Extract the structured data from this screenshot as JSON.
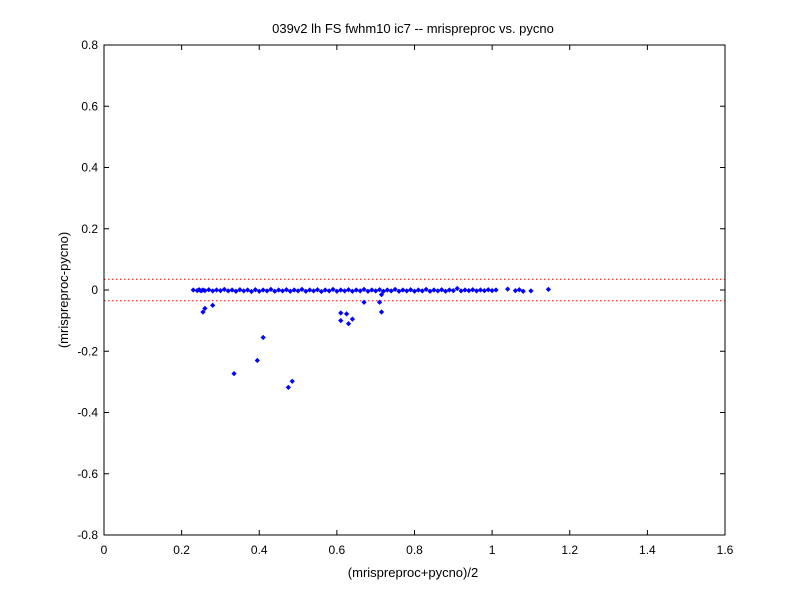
{
  "chart_data": {
    "type": "scatter",
    "title": "039v2 lh FS fwhm10 ic7 -- mrispreproc vs. pycno",
    "xlabel": "(mrispreproc+pycno)/2",
    "ylabel": "(mrispreproc-pycno)",
    "xlim": [
      0,
      1.6
    ],
    "ylim": [
      -0.8,
      0.8
    ],
    "x_ticks": [
      0,
      0.2,
      0.4,
      0.6,
      0.8,
      1,
      1.2,
      1.4,
      1.6
    ],
    "x_tick_labels": [
      "0",
      "0.2",
      "0.4",
      "0.6",
      "0.8",
      "1",
      "1.2",
      "1.4",
      "1.6"
    ],
    "y_ticks": [
      -0.8,
      -0.6,
      -0.4,
      -0.2,
      0,
      0.2,
      0.4,
      0.6,
      0.8
    ],
    "y_tick_labels": [
      "-0.8",
      "-0.6",
      "-0.4",
      "-0.2",
      "0",
      "0.2",
      "0.4",
      "0.6",
      "0.8"
    ],
    "grid": false,
    "point_color": "#0000ff",
    "reference_line_color": "#ff0000",
    "reference_lines_y": [
      0.035,
      -0.035
    ],
    "points": [
      [
        0.23,
        0.0
      ],
      [
        0.24,
        -0.002
      ],
      [
        0.245,
        0.001
      ],
      [
        0.25,
        -0.003
      ],
      [
        0.255,
        0.0
      ],
      [
        0.26,
        -0.002
      ],
      [
        0.27,
        0.001
      ],
      [
        0.28,
        -0.003
      ],
      [
        0.29,
        0.0
      ],
      [
        0.3,
        -0.002
      ],
      [
        0.31,
        0.002
      ],
      [
        0.32,
        -0.003
      ],
      [
        0.33,
        0.0
      ],
      [
        0.34,
        -0.004
      ],
      [
        0.35,
        0.001
      ],
      [
        0.36,
        -0.003
      ],
      [
        0.37,
        0.0
      ],
      [
        0.38,
        -0.005
      ],
      [
        0.39,
        0.001
      ],
      [
        0.4,
        -0.004
      ],
      [
        0.41,
        0.0
      ],
      [
        0.42,
        -0.003
      ],
      [
        0.43,
        0.002
      ],
      [
        0.44,
        -0.004
      ],
      [
        0.45,
        0.0
      ],
      [
        0.46,
        -0.003
      ],
      [
        0.47,
        0.001
      ],
      [
        0.48,
        -0.004
      ],
      [
        0.49,
        0.0
      ],
      [
        0.5,
        -0.003
      ],
      [
        0.51,
        0.002
      ],
      [
        0.52,
        -0.004
      ],
      [
        0.53,
        0.0
      ],
      [
        0.54,
        -0.003
      ],
      [
        0.55,
        0.001
      ],
      [
        0.56,
        -0.005
      ],
      [
        0.57,
        0.0
      ],
      [
        0.58,
        -0.003
      ],
      [
        0.59,
        0.002
      ],
      [
        0.6,
        -0.004
      ],
      [
        0.61,
        0.0
      ],
      [
        0.62,
        -0.003
      ],
      [
        0.63,
        0.001
      ],
      [
        0.64,
        -0.004
      ],
      [
        0.65,
        0.0
      ],
      [
        0.66,
        -0.003
      ],
      [
        0.67,
        0.002
      ],
      [
        0.68,
        -0.004
      ],
      [
        0.69,
        0.0
      ],
      [
        0.7,
        -0.003
      ],
      [
        0.71,
        0.001
      ],
      [
        0.72,
        -0.004
      ],
      [
        0.73,
        0.0
      ],
      [
        0.74,
        -0.003
      ],
      [
        0.75,
        0.002
      ],
      [
        0.76,
        -0.004
      ],
      [
        0.77,
        0.0
      ],
      [
        0.78,
        -0.003
      ],
      [
        0.79,
        0.001
      ],
      [
        0.8,
        -0.004
      ],
      [
        0.81,
        0.0
      ],
      [
        0.82,
        -0.003
      ],
      [
        0.83,
        0.002
      ],
      [
        0.84,
        -0.004
      ],
      [
        0.85,
        0.0
      ],
      [
        0.86,
        -0.003
      ],
      [
        0.87,
        0.001
      ],
      [
        0.88,
        -0.004
      ],
      [
        0.89,
        0.0
      ],
      [
        0.9,
        -0.002
      ],
      [
        0.91,
        0.005
      ],
      [
        0.92,
        -0.003
      ],
      [
        0.93,
        0.0
      ],
      [
        0.94,
        -0.002
      ],
      [
        0.95,
        0.001
      ],
      [
        0.96,
        -0.003
      ],
      [
        0.97,
        0.0
      ],
      [
        0.98,
        -0.002
      ],
      [
        0.99,
        0.001
      ],
      [
        1.0,
        -0.002
      ],
      [
        1.01,
        0.0
      ],
      [
        1.04,
        0.003
      ],
      [
        1.06,
        -0.002
      ],
      [
        1.07,
        0.001
      ],
      [
        1.08,
        -0.004
      ],
      [
        1.1,
        -0.003
      ],
      [
        1.145,
        0.002
      ],
      [
        0.26,
        -0.06
      ],
      [
        0.255,
        -0.072
      ],
      [
        0.28,
        -0.05
      ],
      [
        0.335,
        -0.273
      ],
      [
        0.395,
        -0.23
      ],
      [
        0.41,
        -0.155
      ],
      [
        0.475,
        -0.318
      ],
      [
        0.485,
        -0.298
      ],
      [
        0.61,
        -0.075
      ],
      [
        0.61,
        -0.1
      ],
      [
        0.625,
        -0.078
      ],
      [
        0.63,
        -0.11
      ],
      [
        0.64,
        -0.095
      ],
      [
        0.67,
        -0.04
      ],
      [
        0.71,
        -0.04
      ],
      [
        0.715,
        -0.072
      ],
      [
        0.715,
        -0.015
      ]
    ]
  }
}
